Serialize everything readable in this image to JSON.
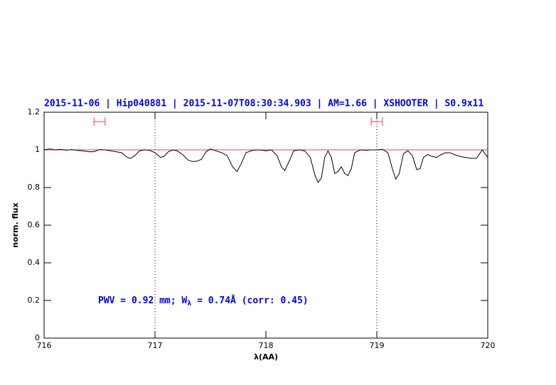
{
  "chart_data": {
    "type": "line",
    "title": "2015-11-06 | Hip040881 | 2015-11-07T08:30:34.903 | AM=1.66 | XSHOOTER | S0.9x11",
    "xlabel": "λ(AA)",
    "ylabel": "norm. flux",
    "annotation": [
      "PWV = 0.92 mm; W",
      "λ",
      " = 0.74Å (corr: 0.45)"
    ],
    "x": [
      716.0,
      716.05,
      716.1,
      716.15,
      716.2,
      716.25,
      716.3,
      716.35,
      716.4,
      716.45,
      716.5,
      716.55,
      716.6,
      716.65,
      716.7,
      716.75,
      716.78,
      716.82,
      716.86,
      716.9,
      716.95,
      717.0,
      717.05,
      717.08,
      717.12,
      717.16,
      717.2,
      717.25,
      717.3,
      717.34,
      717.38,
      717.42,
      717.46,
      717.5,
      717.55,
      717.6,
      717.65,
      717.7,
      717.74,
      717.78,
      717.82,
      717.88,
      717.95,
      718.0,
      718.05,
      718.1,
      718.14,
      718.17,
      718.21,
      718.25,
      718.3,
      718.35,
      718.4,
      718.44,
      718.47,
      718.5,
      718.53,
      718.56,
      718.59,
      718.62,
      718.65,
      718.68,
      718.71,
      718.74,
      718.77,
      718.8,
      718.85,
      718.9,
      718.95,
      719.0,
      719.05,
      719.1,
      719.14,
      719.17,
      719.2,
      719.24,
      719.28,
      719.32,
      719.36,
      719.39,
      719.42,
      719.46,
      719.5,
      719.54,
      719.58,
      719.62,
      719.66,
      719.7,
      719.75,
      719.8,
      719.85,
      719.9,
      719.95,
      720.0
    ],
    "values": [
      1.0,
      1.005,
      1.0,
      1.003,
      0.998,
      1.002,
      0.997,
      0.995,
      0.99,
      0.99,
      1.002,
      1.0,
      0.995,
      0.99,
      0.985,
      0.96,
      0.955,
      0.97,
      0.995,
      1.0,
      0.998,
      0.985,
      0.96,
      0.965,
      0.99,
      1.0,
      0.995,
      0.975,
      0.945,
      0.938,
      0.94,
      0.95,
      0.99,
      1.005,
      0.995,
      0.985,
      0.97,
      0.91,
      0.885,
      0.93,
      0.985,
      0.998,
      1.0,
      0.995,
      1.0,
      0.97,
      0.91,
      0.89,
      0.94,
      0.995,
      1.0,
      0.995,
      0.96,
      0.87,
      0.827,
      0.85,
      0.96,
      0.995,
      0.96,
      0.875,
      0.885,
      0.91,
      0.875,
      0.863,
      0.9,
      0.985,
      1.0,
      0.998,
      1.0,
      1.0,
      1.003,
      0.985,
      0.9,
      0.845,
      0.87,
      0.98,
      0.995,
      0.97,
      0.895,
      0.9,
      0.96,
      0.975,
      0.965,
      0.96,
      0.975,
      0.985,
      0.985,
      0.975,
      0.965,
      0.96,
      0.955,
      0.955,
      1.0,
      0.96
    ],
    "color": "#000000",
    "continuum": {
      "x": [
        716,
        720
      ],
      "values": [
        1,
        1
      ],
      "color": "#ff4040"
    },
    "vlines": [
      717,
      719
    ],
    "ranges": {
      "y": 1.15,
      "color": "#ff4040",
      "x": [
        [
          716.45,
          716.55
        ],
        [
          718.95,
          719.05
        ]
      ]
    },
    "xlim": [
      716,
      720
    ],
    "ylim": [
      0,
      1.2
    ],
    "xticks": [
      716,
      717,
      718,
      719,
      720
    ],
    "yticks": [
      0,
      0.2,
      0.4,
      0.6,
      0.8,
      1,
      1.2
    ]
  }
}
